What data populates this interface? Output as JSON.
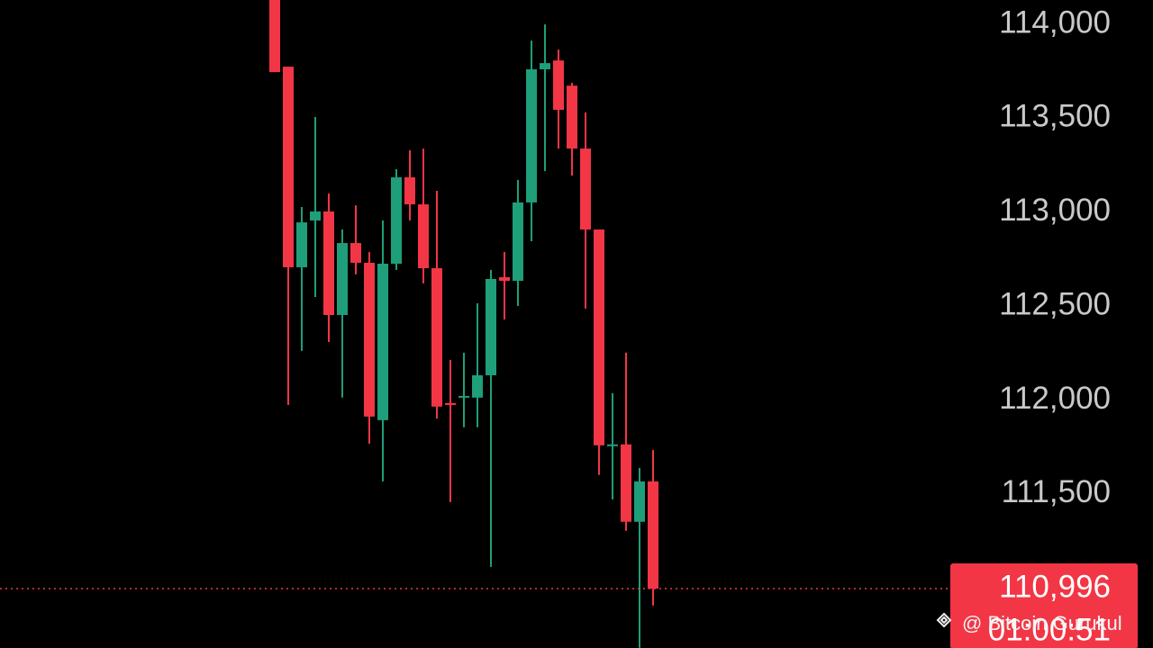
{
  "chart_data": {
    "type": "candlestick",
    "up_color": "#1f9e7a",
    "down_color": "#f23645",
    "open": [
      114130,
      113775,
      112707,
      112956,
      113004,
      112453,
      112836,
      112731,
      111893,
      112726,
      113186,
      113042,
      112702,
      111984,
      112013,
      112013,
      112132,
      112654,
      112635,
      113052,
      113761,
      113808,
      113674,
      113339,
      112908,
      111759,
      111764,
      111352,
      111567
    ],
    "high": [
      114130,
      113775,
      113028,
      113507,
      113100,
      112908,
      113037,
      112788,
      112956,
      113229,
      113330,
      113339,
      113114,
      112214,
      112252,
      112515,
      112693,
      112788,
      113172,
      113914,
      114000,
      113866,
      113689,
      113531,
      112908,
      112037,
      112252,
      111639,
      111735
    ],
    "low": [
      113746,
      111974,
      112262,
      112549,
      112309,
      112013,
      112669,
      111768,
      111567,
      112693,
      112956,
      112621,
      111902,
      111457,
      111855,
      111855,
      111112,
      112429,
      112501,
      112846,
      113219,
      113339,
      113195,
      112487,
      111601,
      111471,
      111304,
      110681,
      110906
    ],
    "close": [
      113746,
      112707,
      112946,
      113004,
      112453,
      112836,
      112731,
      111912,
      112726,
      113186,
      113042,
      112702,
      111965,
      111974,
      112022,
      112132,
      112645,
      112635,
      113052,
      113761,
      113794,
      113545,
      113339,
      112908,
      111759,
      111764,
      111352,
      111567,
      110996
    ],
    "ylim": [
      110680,
      114130
    ],
    "yticks": [
      {
        "value": 114000,
        "label": "114,000"
      },
      {
        "value": 113500,
        "label": "113,500"
      },
      {
        "value": 113000,
        "label": "113,000"
      },
      {
        "value": 112500,
        "label": "112,500"
      },
      {
        "value": 112000,
        "label": "112,000"
      },
      {
        "value": 111500,
        "label": "111,500"
      }
    ],
    "last_price": {
      "value": 110996,
      "label": "110,996"
    },
    "countdown": "01:00:51",
    "watermark": "@ Bitcoin Gurukul"
  }
}
